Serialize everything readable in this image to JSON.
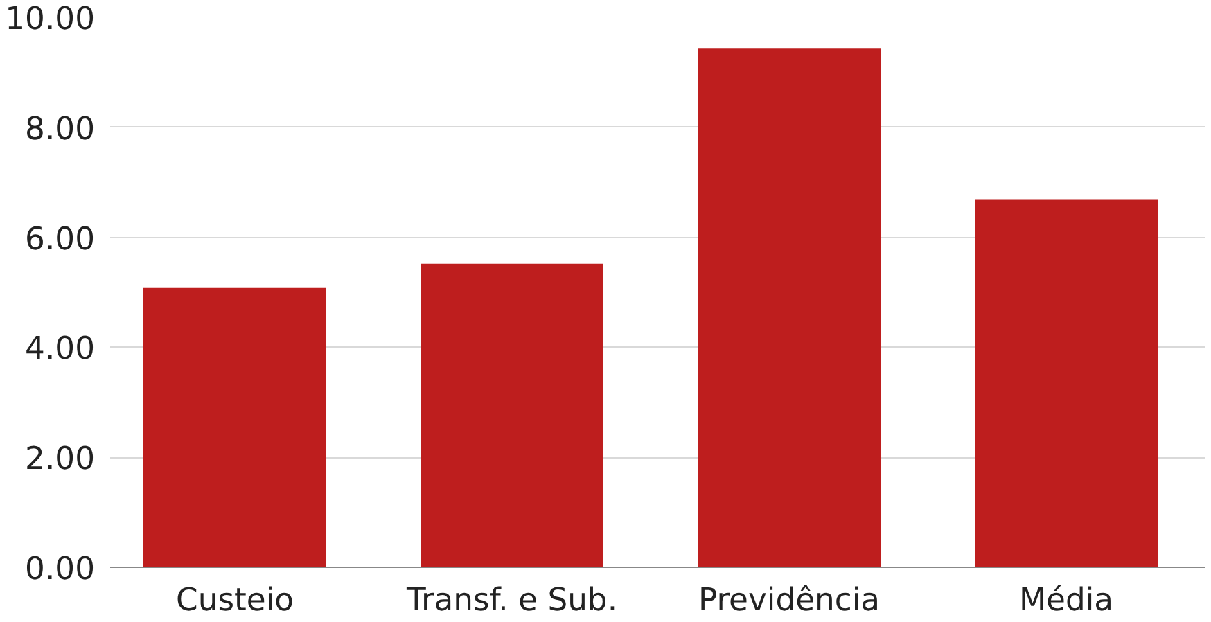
{
  "chart_data": {
    "type": "bar",
    "categories": [
      "Custeio",
      "Transf. e Sub.",
      "Previdência",
      "Média"
    ],
    "values": [
      5.08,
      5.52,
      9.43,
      6.68
    ],
    "color": "#be1e1e",
    "ylim": [
      0,
      10
    ],
    "yticks": [
      {
        "value": 0,
        "label": "0.00"
      },
      {
        "value": 2,
        "label": "2.00"
      },
      {
        "value": 4,
        "label": "4.00"
      },
      {
        "value": 6,
        "label": "6.00"
      },
      {
        "value": 8,
        "label": "8.00"
      },
      {
        "value": 10,
        "label": "10.00"
      }
    ],
    "grid": "y"
  }
}
